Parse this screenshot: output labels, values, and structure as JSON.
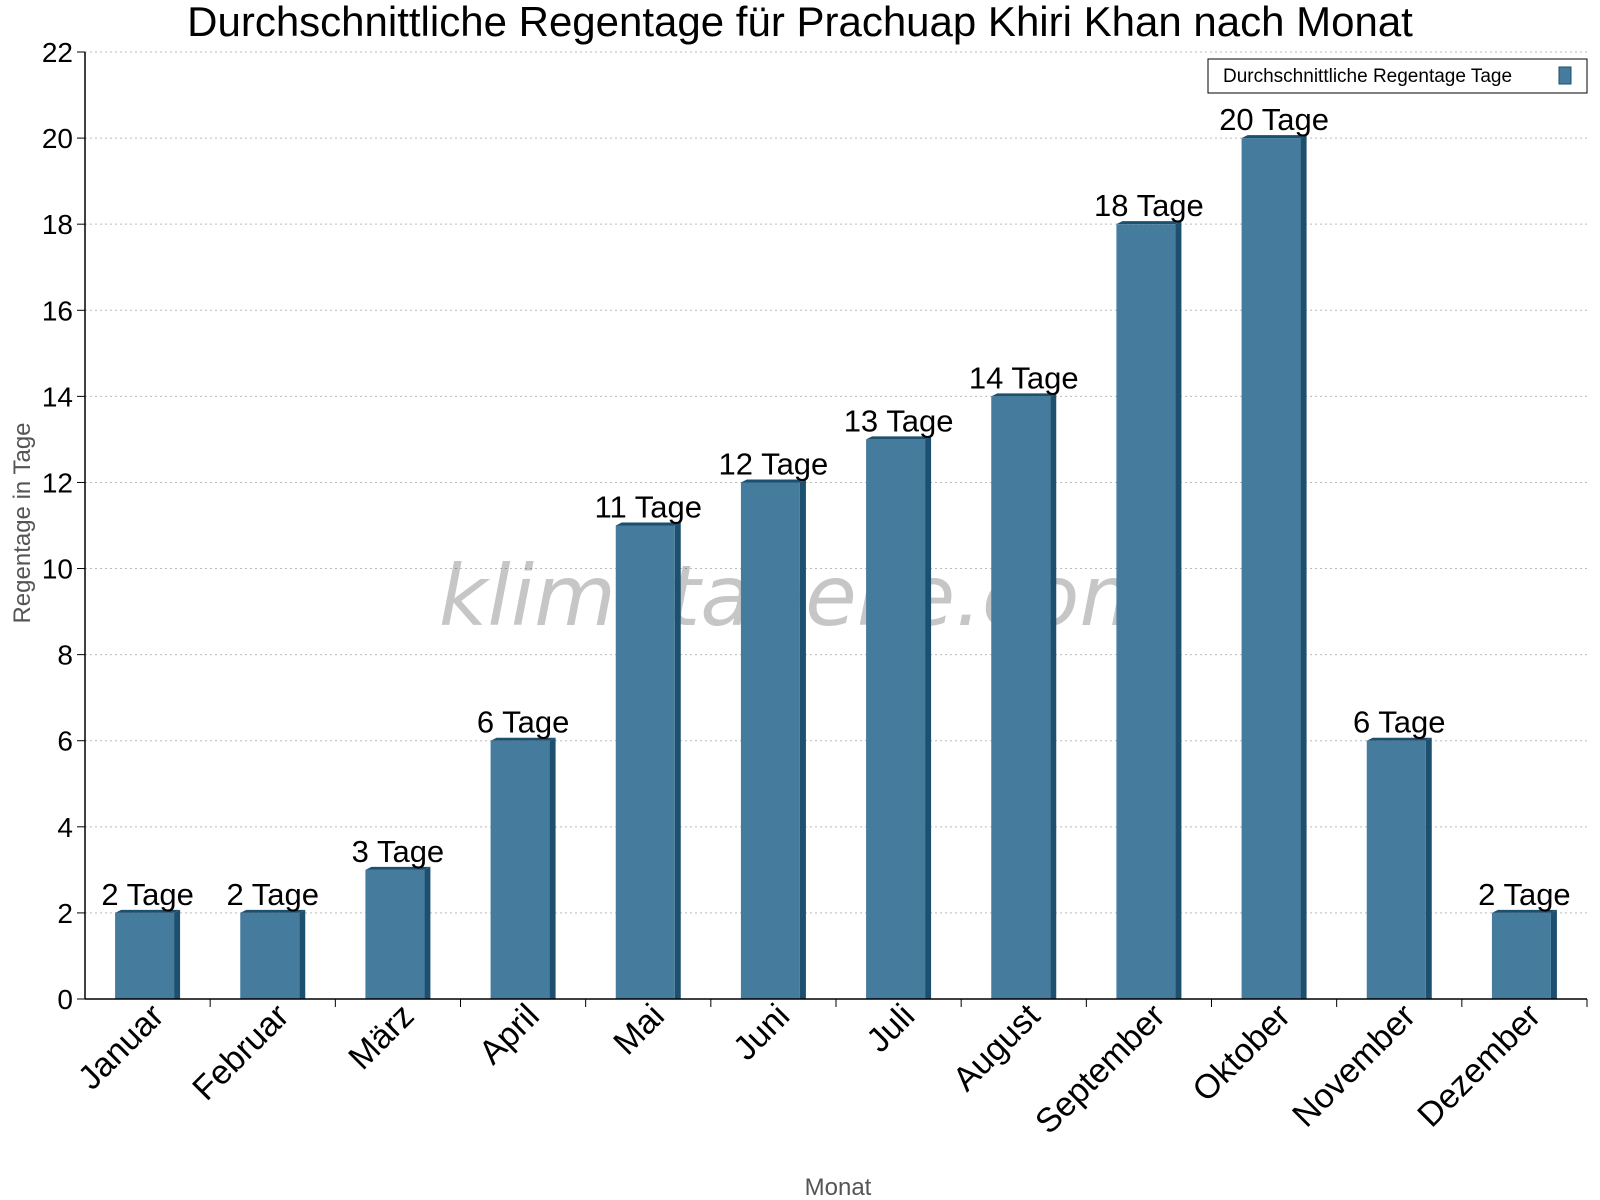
{
  "chart_data": {
    "type": "bar",
    "title": "Durchschnittliche Regentage für Prachuap Khiri Khan nach Monat",
    "xlabel": "Monat",
    "ylabel": "Regentage in Tage",
    "categories": [
      "Januar",
      "Februar",
      "März",
      "April",
      "Mai",
      "Juni",
      "Juli",
      "August",
      "September",
      "Oktober",
      "November",
      "Dezember"
    ],
    "series": [
      {
        "name": "Durchschnittliche Regentage Tage",
        "values": [
          2,
          2,
          3,
          6,
          11,
          12,
          13,
          14,
          18,
          20,
          6,
          2
        ],
        "labels": [
          "2 Tage",
          "2 Tage",
          "3 Tage",
          "6 Tage",
          "11 Tage",
          "12 Tage",
          "13 Tage",
          "14 Tage",
          "18 Tage",
          "20 Tage",
          "6 Tage",
          "2 Tage"
        ]
      }
    ],
    "ylim": [
      0,
      22
    ],
    "yticks": [
      "0",
      "2",
      "4",
      "6",
      "8",
      "10",
      "12",
      "14",
      "16",
      "18",
      "20",
      "22"
    ],
    "grid": true,
    "legend_position": "top-right",
    "bar_color": "#457b9d",
    "bar_side_color": "#1d4f6e",
    "watermark": "klimatabelle.com"
  }
}
